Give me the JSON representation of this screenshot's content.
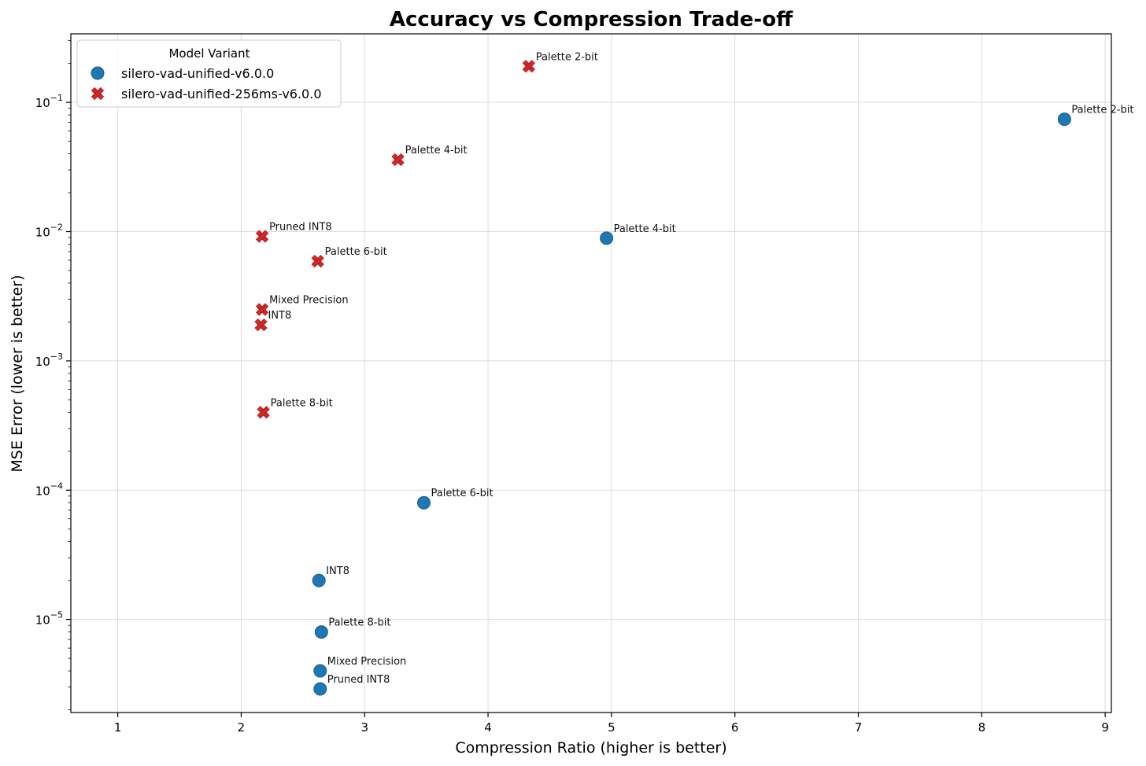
{
  "chart_data": {
    "type": "scatter",
    "title": "Accuracy vs Compression Trade-off",
    "xlabel": "Compression Ratio (higher is better)",
    "ylabel": "MSE Error (lower is better)",
    "xlim": [
      0.62,
      9.05
    ],
    "ylim_log10": [
      -5.72,
      -0.47
    ],
    "y_scale": "log",
    "grid": true,
    "x_ticks": [
      1,
      2,
      3,
      4,
      5,
      6,
      7,
      8,
      9
    ],
    "y_ticks": [
      {
        "value": 0.1,
        "base": "10",
        "exp": "−1"
      },
      {
        "value": 0.01,
        "base": "10",
        "exp": "−2"
      },
      {
        "value": 0.001,
        "base": "10",
        "exp": "−3"
      },
      {
        "value": 0.0001,
        "base": "10",
        "exp": "−4"
      },
      {
        "value": 1e-05,
        "base": "10",
        "exp": "−5"
      }
    ],
    "legend": {
      "title": "Model Variant",
      "location": "upper-left"
    },
    "series": [
      {
        "name": "silero-vad-unified-v6.0.0",
        "marker": "circle",
        "color": "#1f77b4",
        "points": [
          {
            "label": "Palette 2-bit",
            "x": 8.67,
            "y": 0.074
          },
          {
            "label": "Palette 4-bit",
            "x": 4.96,
            "y": 0.0089
          },
          {
            "label": "Palette 6-bit",
            "x": 3.48,
            "y": 8e-05
          },
          {
            "label": "INT8",
            "x": 2.63,
            "y": 2e-05
          },
          {
            "label": "Palette 8-bit",
            "x": 2.65,
            "y": 8e-06
          },
          {
            "label": "Mixed Precision",
            "x": 2.64,
            "y": 4e-06
          },
          {
            "label": "Pruned INT8",
            "x": 2.64,
            "y": 2.9e-06
          }
        ]
      },
      {
        "name": "silero-vad-unified-256ms-v6.0.0",
        "marker": "x",
        "color": "#d62728",
        "points": [
          {
            "label": "Palette 2-bit",
            "x": 4.33,
            "y": 0.19
          },
          {
            "label": "Palette 4-bit",
            "x": 3.27,
            "y": 0.036
          },
          {
            "label": "Pruned INT8",
            "x": 2.17,
            "y": 0.0092
          },
          {
            "label": "Palette 6-bit",
            "x": 2.62,
            "y": 0.0059
          },
          {
            "label": "Mixed Precision",
            "x": 2.17,
            "y": 0.0025
          },
          {
            "label": "INT8",
            "x": 2.16,
            "y": 0.0019
          },
          {
            "label": "Palette 8-bit",
            "x": 2.18,
            "y": 0.0004
          }
        ]
      }
    ]
  }
}
